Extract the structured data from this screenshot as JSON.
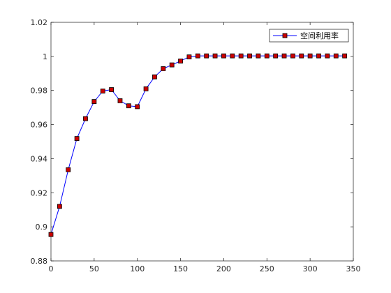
{
  "chart_data": {
    "type": "line",
    "title": "",
    "xlabel": "",
    "ylabel": "",
    "xlim": [
      0,
      350
    ],
    "ylim": [
      0.88,
      1.02
    ],
    "x_ticks": [
      0,
      50,
      100,
      150,
      200,
      250,
      300,
      350
    ],
    "x_tick_labels": [
      "0",
      "50",
      "100",
      "150",
      "200",
      "250",
      "300",
      "350"
    ],
    "y_ticks": [
      0.88,
      0.9,
      0.92,
      0.94,
      0.96,
      0.98,
      1,
      1.02
    ],
    "y_tick_labels": [
      "0.88",
      "0.9",
      "0.92",
      "0.94",
      "0.96",
      "0.98",
      "1",
      "1.02"
    ],
    "grid": false,
    "legend_position": "top-right",
    "series": [
      {
        "name": "空间利用率",
        "line_color": "#0000ff",
        "marker": "square",
        "marker_face_color": "#cc0000",
        "marker_edge_color": "#000000",
        "x": [
          0,
          10,
          20,
          30,
          40,
          50,
          60,
          70,
          80,
          90,
          100,
          110,
          120,
          130,
          140,
          150,
          160,
          170,
          180,
          190,
          200,
          210,
          220,
          230,
          240,
          250,
          260,
          270,
          280,
          290,
          300,
          310,
          320,
          330,
          340
        ],
        "y": [
          0.8955,
          0.912,
          0.9335,
          0.9518,
          0.9635,
          0.9735,
          0.9797,
          0.9805,
          0.974,
          0.971,
          0.9705,
          0.981,
          0.988,
          0.9928,
          0.995,
          0.9973,
          0.9997,
          1.0003,
          1.0003,
          1.0003,
          1.0003,
          1.0003,
          1.0003,
          1.0003,
          1.0003,
          1.0003,
          1.0003,
          1.0003,
          1.0003,
          1.0003,
          1.0003,
          1.0003,
          1.0003,
          1.0003,
          1.0003
        ]
      }
    ]
  }
}
